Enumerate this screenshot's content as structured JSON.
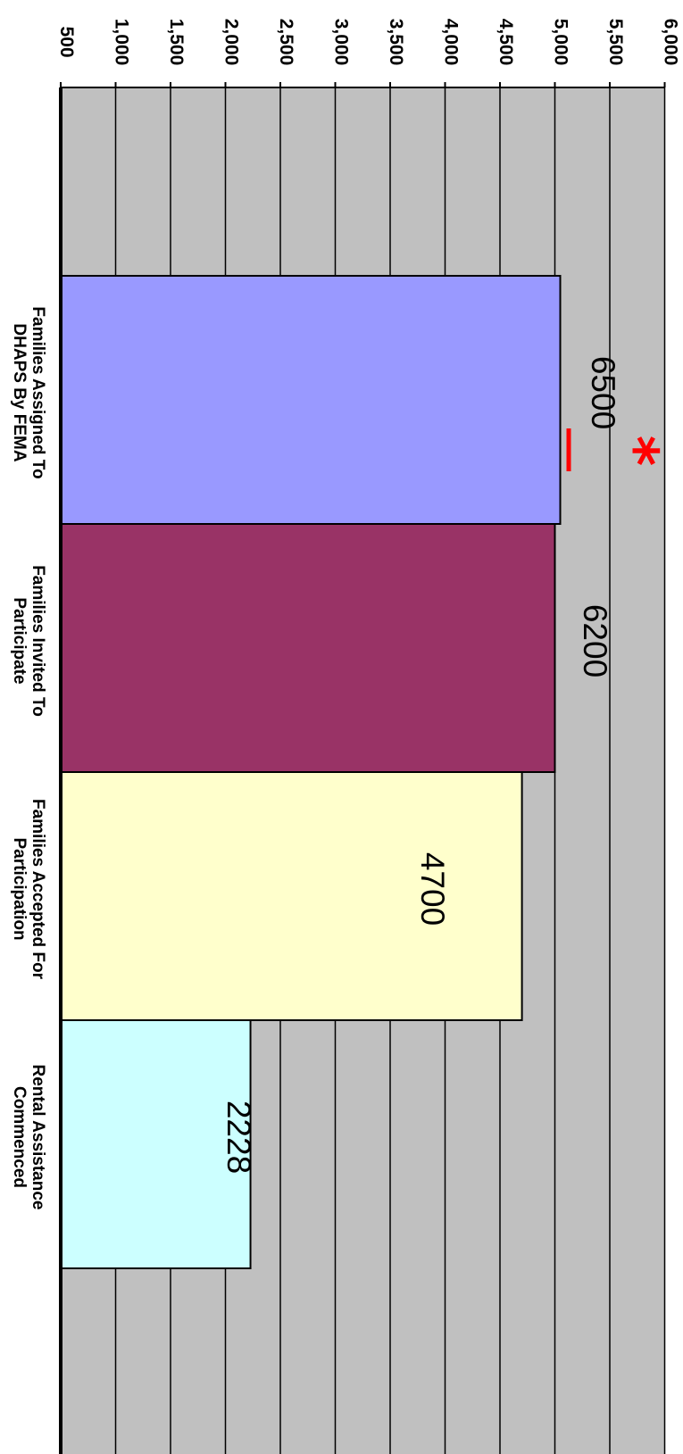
{
  "chart_data": {
    "type": "bar",
    "orientation": "rotated 90 degrees clockwise",
    "categories": [
      [
        "Families Assigned To",
        "DHAPS By FEMA"
      ],
      [
        "Families Invited To",
        "Participate"
      ],
      [
        "Families Accepted For",
        "Participation"
      ],
      [
        "Rental Assistance",
        "Commenced"
      ]
    ],
    "values": [
      6500,
      6200,
      4700,
      2228
    ],
    "data_labels": [
      "6500",
      "6200",
      "4700",
      "2228"
    ],
    "ylim": [
      500,
      6000
    ],
    "y_ticks": [
      500,
      1000,
      1500,
      2000,
      2500,
      3000,
      3500,
      4000,
      4500,
      5000,
      5500,
      6000
    ],
    "y_tick_labels": [
      "500",
      "1,000",
      "1,500",
      "2,000",
      "2,500",
      "3,000",
      "3,500",
      "4,000",
      "4,500",
      "5,000",
      "5,500",
      "6,000"
    ],
    "grid": true,
    "plot_background": "#c0c0c0",
    "bar_colors": [
      "#9999ff",
      "#993366",
      "#ffffcc",
      "#ccffff"
    ],
    "annotation": {
      "symbol": "*",
      "color": "#ff0000"
    },
    "title": "",
    "xlabel": "",
    "ylabel": ""
  }
}
